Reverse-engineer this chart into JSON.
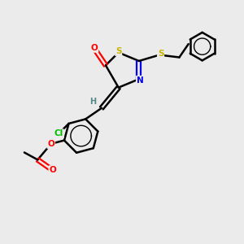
{
  "background_color": "#ebebeb",
  "atom_colors": {
    "S": "#c8b400",
    "O": "#ff0000",
    "N": "#0000ee",
    "Cl": "#00bb00",
    "C": "#000000",
    "H": "#558888"
  },
  "bond_color": "#000000",
  "figsize": [
    3.0,
    3.0
  ],
  "dpi": 100
}
